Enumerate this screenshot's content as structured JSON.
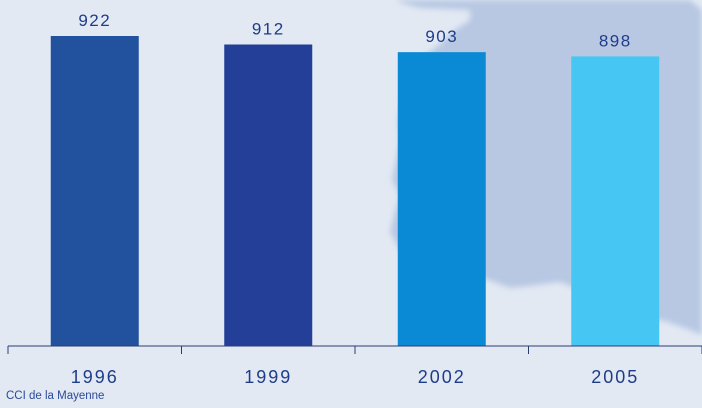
{
  "source": "CCI de la Mayenne",
  "chart_data": {
    "type": "bar",
    "categories": [
      "1996",
      "1999",
      "2002",
      "2005"
    ],
    "values": [
      922,
      912,
      903,
      898
    ],
    "colors": [
      "#22519e",
      "#233f98",
      "#0a8ad4",
      "#46c6f3"
    ],
    "title": "",
    "xlabel": "",
    "ylabel": "",
    "grid": false,
    "legend": "none"
  }
}
